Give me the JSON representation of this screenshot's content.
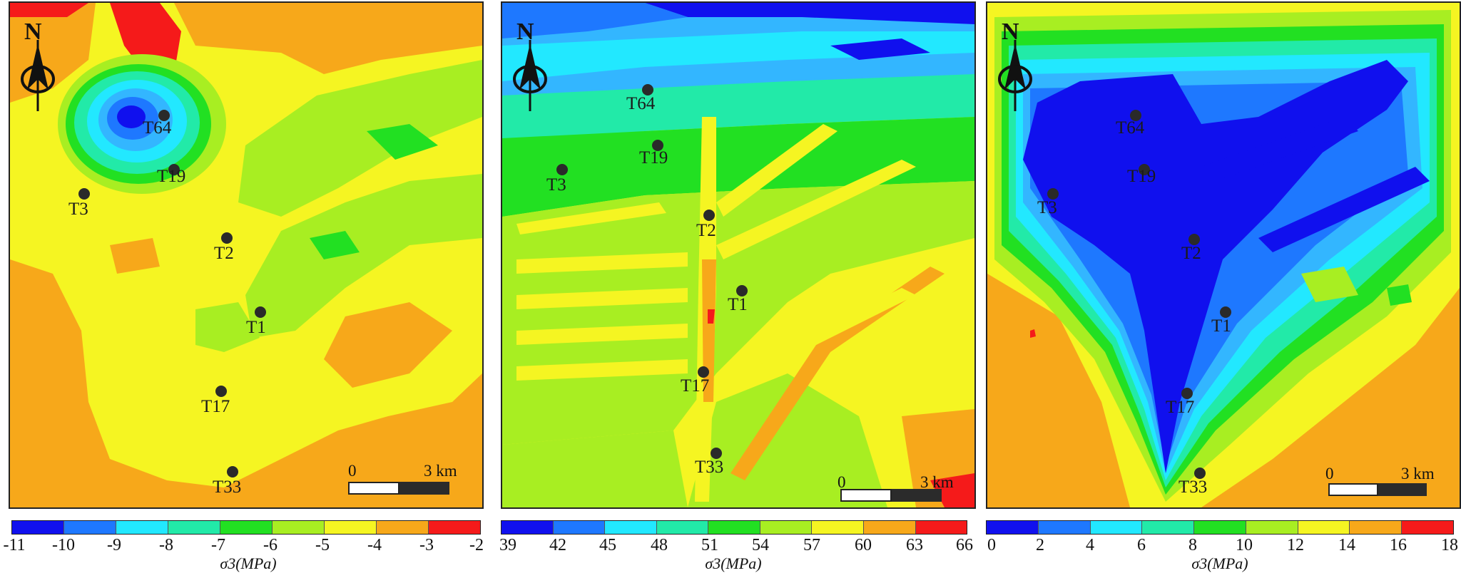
{
  "colors": {
    "dark_blue": "#1010ee",
    "blue": "#1e78ff",
    "light_blue": "#33b6ff",
    "cyan": "#22e8ff",
    "teal": "#22eaa8",
    "green": "#22e022",
    "yellow_green": "#a8ee22",
    "yellow": "#f5f522",
    "orange": "#f7a81a",
    "red": "#f51a1a"
  },
  "panels": [
    {
      "id": "panel-1",
      "north_label": "N",
      "scale": {
        "zero": "0",
        "end": "3 km"
      },
      "wells": [
        {
          "label": "T64"
        },
        {
          "label": "T19"
        },
        {
          "label": "T3"
        },
        {
          "label": "T2"
        },
        {
          "label": "T1"
        },
        {
          "label": "T17"
        },
        {
          "label": "T33"
        }
      ],
      "colorbar": {
        "ticks": [
          "-11",
          "-10",
          "-9",
          "-8",
          "-7",
          "-6",
          "-5",
          "-4",
          "-3",
          "-2"
        ],
        "title": "σ3(MPa)",
        "class_colors": [
          "#1010ee",
          "#1e78ff",
          "#22e8ff",
          "#22eaa8",
          "#22e022",
          "#a8ee22",
          "#f5f522",
          "#f7a81a",
          "#f51a1a"
        ]
      }
    },
    {
      "id": "panel-2",
      "north_label": "N",
      "scale": {
        "zero": "0",
        "end": "3 km"
      },
      "wells": [
        {
          "label": "T64"
        },
        {
          "label": "T19"
        },
        {
          "label": "T3"
        },
        {
          "label": "T2"
        },
        {
          "label": "T1"
        },
        {
          "label": "T17"
        },
        {
          "label": "T33"
        }
      ],
      "colorbar": {
        "ticks": [
          "39",
          "42",
          "45",
          "48",
          "51",
          "54",
          "57",
          "60",
          "63",
          "66"
        ],
        "title": "σ3(MPa)",
        "class_colors": [
          "#1010ee",
          "#1e78ff",
          "#22e8ff",
          "#22eaa8",
          "#22e022",
          "#a8ee22",
          "#f5f522",
          "#f7a81a",
          "#f51a1a"
        ]
      }
    },
    {
      "id": "panel-3",
      "north_label": "N",
      "scale": {
        "zero": "0",
        "end": "3 km"
      },
      "wells": [
        {
          "label": "T64"
        },
        {
          "label": "T19"
        },
        {
          "label": "T3"
        },
        {
          "label": "T2"
        },
        {
          "label": "T1"
        },
        {
          "label": "T17"
        },
        {
          "label": "T33"
        }
      ],
      "colorbar": {
        "ticks": [
          "0",
          "2",
          "4",
          "6",
          "8",
          "10",
          "12",
          "14",
          "16",
          "18"
        ],
        "title": "σ3(MPa)",
        "class_colors": [
          "#1010ee",
          "#1e78ff",
          "#22e8ff",
          "#22eaa8",
          "#22e022",
          "#a8ee22",
          "#f5f522",
          "#f7a81a",
          "#f51a1a"
        ]
      }
    }
  ]
}
